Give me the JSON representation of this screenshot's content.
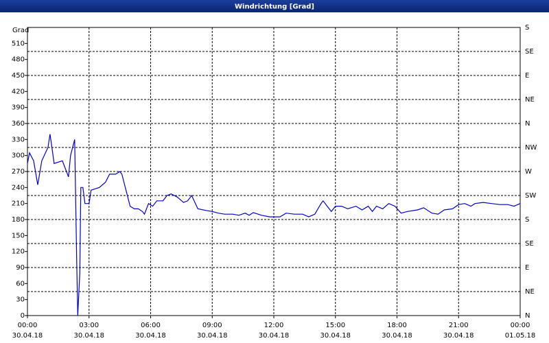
{
  "chart_data": {
    "type": "line",
    "title": "Windrichtung [Grad]",
    "y_label": "Grad",
    "xlim": [
      0,
      24
    ],
    "xticks": [
      {
        "value": 0,
        "label": "00:00",
        "date": "30.04.18"
      },
      {
        "value": 3,
        "label": "03:00",
        "date": "30.04.18"
      },
      {
        "value": 6,
        "label": "06:00",
        "date": "30.04.18"
      },
      {
        "value": 9,
        "label": "09:00",
        "date": "30.04.18"
      },
      {
        "value": 12,
        "label": "12:00",
        "date": "30.04.18"
      },
      {
        "value": 15,
        "label": "15:00",
        "date": "30.04.18"
      },
      {
        "value": 18,
        "label": "18:00",
        "date": "30.04.18"
      },
      {
        "value": 21,
        "label": "21:00",
        "date": "30.04.18"
      },
      {
        "value": 24,
        "label": "00:00",
        "date": "01.05.18"
      }
    ],
    "ylim": [
      0,
      540
    ],
    "yticks": [
      0,
      30,
      60,
      90,
      120,
      150,
      180,
      210,
      240,
      270,
      300,
      330,
      360,
      390,
      420,
      450,
      480,
      510
    ],
    "y2lim": [
      0,
      540
    ],
    "y2ticks": [
      {
        "value": 0,
        "label": "N"
      },
      {
        "value": 45,
        "label": "NE"
      },
      {
        "value": 90,
        "label": "E"
      },
      {
        "value": 135,
        "label": "SE"
      },
      {
        "value": 180,
        "label": "S"
      },
      {
        "value": 225,
        "label": "SW"
      },
      {
        "value": 270,
        "label": "W"
      },
      {
        "value": 315,
        "label": "NW"
      },
      {
        "value": 360,
        "label": "N"
      },
      {
        "value": 405,
        "label": "NE"
      },
      {
        "value": 450,
        "label": "E"
      },
      {
        "value": 495,
        "label": "SE"
      },
      {
        "value": 540,
        "label": "S"
      }
    ],
    "grid": true,
    "series": [
      {
        "name": "Windrichtung",
        "color": "#0000cc",
        "x": [
          0,
          0.1,
          0.3,
          0.5,
          0.7,
          1.0,
          1.1,
          1.3,
          1.7,
          2.0,
          2.1,
          2.3,
          2.4,
          2.45,
          2.55,
          2.6,
          2.7,
          2.8,
          3.0,
          3.1,
          3.5,
          3.8,
          4.0,
          4.3,
          4.5,
          4.6,
          4.8,
          5.0,
          5.2,
          5.4,
          5.6,
          5.7,
          5.9,
          6.1,
          6.3,
          6.6,
          6.8,
          7.0,
          7.3,
          7.6,
          7.8,
          8.0,
          8.3,
          8.7,
          9.0,
          9.3,
          9.6,
          10.0,
          10.3,
          10.6,
          10.8,
          11.0,
          11.4,
          11.8,
          12.3,
          12.6,
          13.0,
          13.4,
          13.7,
          14.0,
          14.3,
          14.4,
          14.6,
          14.8,
          15.0,
          15.3,
          15.6,
          16.0,
          16.3,
          16.6,
          16.8,
          17.0,
          17.3,
          17.6,
          17.9,
          18.2,
          18.5,
          19.0,
          19.3,
          19.7,
          20.0,
          20.3,
          20.7,
          21.0,
          21.3,
          21.6,
          21.8,
          22.2,
          22.6,
          23.0,
          23.4,
          23.7,
          24.0
        ],
        "values": [
          285,
          305,
          290,
          245,
          290,
          315,
          340,
          285,
          290,
          260,
          300,
          330,
          100,
          0,
          80,
          240,
          240,
          210,
          210,
          235,
          240,
          250,
          265,
          265,
          270,
          265,
          235,
          205,
          200,
          200,
          195,
          190,
          210,
          205,
          215,
          215,
          225,
          228,
          222,
          212,
          215,
          225,
          200,
          197,
          195,
          192,
          190,
          190,
          188,
          192,
          188,
          193,
          188,
          185,
          185,
          192,
          190,
          190,
          185,
          190,
          210,
          215,
          205,
          195,
          205,
          205,
          200,
          205,
          198,
          205,
          195,
          205,
          200,
          210,
          205,
          192,
          195,
          198,
          202,
          192,
          190,
          198,
          200,
          208,
          210,
          205,
          210,
          212,
          210,
          208,
          208,
          205,
          210
        ]
      }
    ]
  }
}
